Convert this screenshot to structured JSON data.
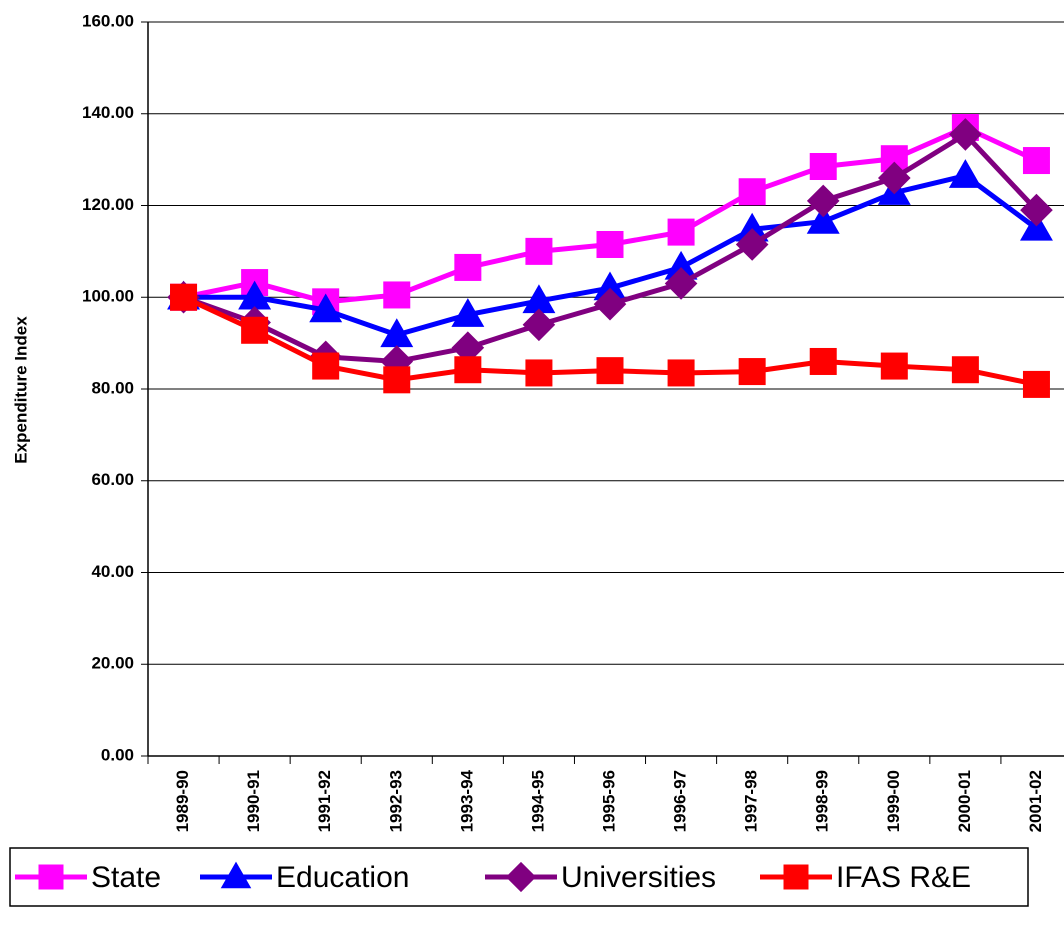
{
  "chart_data": {
    "type": "line",
    "y_label": "Expenditure Index",
    "categories": [
      "1989-90",
      "1990-91",
      "1991-92",
      "1992-93",
      "1993-94",
      "1994-95",
      "1995-96",
      "1996-97",
      "1997-98",
      "1998-99",
      "1999-00",
      "2000-01",
      "2001-02"
    ],
    "series": [
      {
        "name": "State",
        "color": "#ff00ff",
        "marker": "square",
        "values": [
          100,
          103.2,
          99,
          100.5,
          106.5,
          110,
          111.5,
          114.2,
          123,
          128.5,
          130.2,
          137,
          129.8
        ]
      },
      {
        "name": "Education",
        "color": "#0000ff",
        "marker": "triangle",
        "values": [
          100,
          100,
          97.2,
          91.8,
          96.2,
          99.2,
          102,
          106.5,
          114.8,
          116.5,
          122.8,
          126.5,
          115
        ]
      },
      {
        "name": "Universities",
        "color": "#800080",
        "marker": "diamond",
        "values": [
          100,
          94.5,
          87,
          86,
          89,
          94,
          98.5,
          103,
          111.5,
          121,
          126,
          135.5,
          119
        ]
      },
      {
        "name": "IFAS R&E",
        "color": "#ff0000",
        "marker": "square",
        "values": [
          100,
          92.8,
          85,
          82,
          84.2,
          83.5,
          84,
          83.5,
          83.8,
          86,
          85,
          84.2,
          81
        ]
      }
    ],
    "ylim": [
      0,
      160
    ],
    "yticks": [
      {
        "value": 0,
        "label": "0.00"
      },
      {
        "value": 20,
        "label": "20.00"
      },
      {
        "value": 40,
        "label": "40.00"
      },
      {
        "value": 60,
        "label": "60.00"
      },
      {
        "value": 80,
        "label": "80.00"
      },
      {
        "value": 100,
        "label": "100.00"
      },
      {
        "value": 120,
        "label": "120.00"
      },
      {
        "value": 140,
        "label": "140.00"
      },
      {
        "value": 160,
        "label": "160.00"
      }
    ],
    "grid": true
  }
}
